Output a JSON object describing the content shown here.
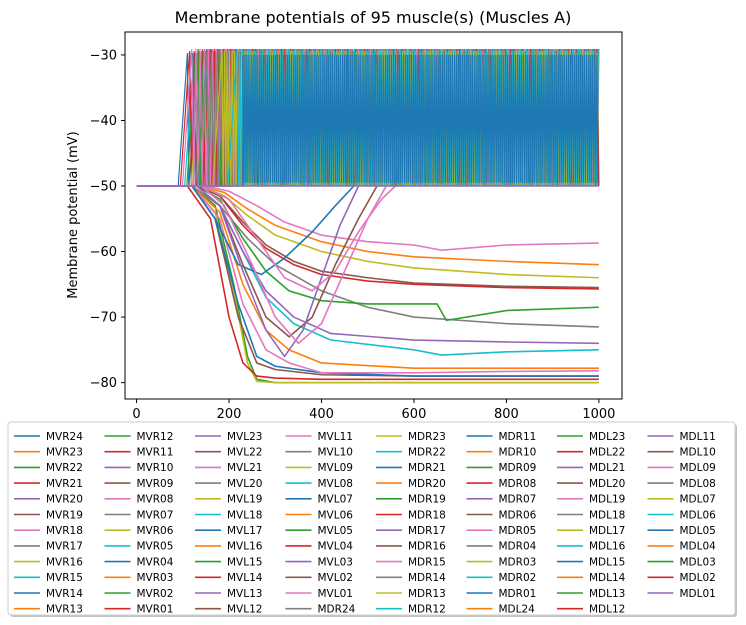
{
  "chart_data": {
    "type": "line",
    "title": "Membrane potentials of 95 muscle(s) (Muscles A)",
    "xlabel": "",
    "ylabel": "Membrane potential (mV)",
    "xlim": [
      -25,
      1050
    ],
    "ylim": [
      -82.5,
      -26.5
    ],
    "xticks": [
      0,
      200,
      400,
      600,
      800,
      1000
    ],
    "yticks": [
      -30,
      -40,
      -50,
      -60,
      -70,
      -80
    ],
    "xtick_labels": [
      "0",
      "200",
      "400",
      "600",
      "800",
      "1000"
    ],
    "ytick_labels": [
      "−30",
      "−40",
      "−50",
      "−60",
      "−70",
      "−80"
    ],
    "legend": {
      "placement": "bottom",
      "columns": 8
    },
    "palette": [
      "#1f77b4",
      "#ff7f0e",
      "#2ca02c",
      "#d62728",
      "#9467bd",
      "#8c564b",
      "#e377c2",
      "#7f7f7f",
      "#bcbd22",
      "#17becf"
    ],
    "series_names": [
      "MVR24",
      "MVR23",
      "MVR22",
      "MVR21",
      "MVR20",
      "MVR19",
      "MVR18",
      "MVR17",
      "MVR16",
      "MVR15",
      "MVR14",
      "MVR13",
      "MVR12",
      "MVR11",
      "MVR10",
      "MVR09",
      "MVR08",
      "MVR07",
      "MVR06",
      "MVR05",
      "MVR04",
      "MVR03",
      "MVR02",
      "MVR01",
      "MVL23",
      "MVL22",
      "MVL21",
      "MVL20",
      "MVL19",
      "MVL18",
      "MVL17",
      "MVL16",
      "MVL15",
      "MVL14",
      "MVL13",
      "MVL12",
      "MVL11",
      "MVL10",
      "MVL09",
      "MVL08",
      "MVL07",
      "MVL06",
      "MVL05",
      "MVL04",
      "MVL03",
      "MVL02",
      "MVL01",
      "MDR24",
      "MDR23",
      "MDR22",
      "MDR21",
      "MDR20",
      "MDR19",
      "MDR18",
      "MDR17",
      "MDR16",
      "MDR15",
      "MDR14",
      "MDR13",
      "MDR12",
      "MDR11",
      "MDR10",
      "MDR09",
      "MDR08",
      "MDR07",
      "MDR06",
      "MDR05",
      "MDR04",
      "MDR03",
      "MDR02",
      "MDR01",
      "MDL24",
      "MDL23",
      "MDL22",
      "MDL21",
      "MDL20",
      "MDL19",
      "MDL18",
      "MDL17",
      "MDL16",
      "MDL15",
      "MDL14",
      "MDL13",
      "MDL12",
      "MDL11",
      "MDL10",
      "MDL09",
      "MDL08",
      "MDL07",
      "MDL06",
      "MDL05",
      "MDL04",
      "MDL03",
      "MDL02",
      "MDL01"
    ],
    "representative_series": [
      {
        "kind": "hyperpolarize",
        "color": "#2ca02c",
        "x": [
          0,
          120,
          170,
          210,
          240,
          260,
          300,
          400,
          600,
          800,
          1000
        ],
        "y": [
          -50,
          -50,
          -53,
          -65,
          -76,
          -79.5,
          -80,
          -80,
          -80,
          -80,
          -80
        ]
      },
      {
        "kind": "hyperpolarize",
        "color": "#bcbd22",
        "x": [
          0,
          120,
          170,
          210,
          240,
          260,
          300,
          400,
          600,
          800,
          1000
        ],
        "y": [
          -50,
          -50,
          -54,
          -66,
          -77,
          -79.8,
          -80,
          -80,
          -80,
          -80,
          -80
        ]
      },
      {
        "kind": "hyperpolarize",
        "color": "#d62728",
        "x": [
          0,
          110,
          160,
          200,
          230,
          260,
          300,
          400,
          600,
          800,
          1000
        ],
        "y": [
          -50,
          -50,
          -55,
          -70,
          -77,
          -79,
          -79.3,
          -79.5,
          -79.5,
          -79.5,
          -79.5
        ]
      },
      {
        "kind": "hyperpolarize",
        "color": "#8c564b",
        "x": [
          0,
          120,
          170,
          220,
          260,
          300,
          400,
          600,
          800,
          1000
        ],
        "y": [
          -50,
          -50,
          -55,
          -70,
          -77,
          -78,
          -78.8,
          -79,
          -79,
          -79
        ]
      },
      {
        "kind": "hyperpolarize",
        "color": "#1f77b4",
        "x": [
          0,
          120,
          170,
          220,
          260,
          300,
          400,
          600,
          800,
          1000
        ],
        "y": [
          -50,
          -50,
          -55,
          -68,
          -76,
          -77.5,
          -78.5,
          -79,
          -79,
          -79
        ]
      },
      {
        "kind": "hyperpolarize",
        "color": "#e377c2",
        "x": [
          0,
          120,
          180,
          230,
          280,
          330,
          400,
          600,
          800,
          1000
        ],
        "y": [
          -50,
          -50,
          -55,
          -68,
          -75,
          -77,
          -78.5,
          -78.5,
          -78.3,
          -78.2
        ]
      },
      {
        "kind": "hyperpolarize",
        "color": "#ff7f0e",
        "x": [
          0,
          120,
          180,
          230,
          280,
          330,
          400,
          600,
          800,
          1000
        ],
        "y": [
          -50,
          -50,
          -54,
          -65,
          -72,
          -75,
          -77,
          -77.8,
          -77.8,
          -77.8
        ]
      },
      {
        "kind": "hyperpolarize",
        "color": "#17becf",
        "x": [
          0,
          120,
          180,
          230,
          280,
          340,
          420,
          600,
          660,
          800,
          1000
        ],
        "y": [
          -50,
          -50,
          -53,
          -60,
          -67,
          -71,
          -73.5,
          -75,
          -75.8,
          -75.3,
          -75
        ]
      },
      {
        "kind": "hyperpolarize",
        "color": "#9467bd",
        "x": [
          0,
          120,
          180,
          230,
          280,
          340,
          420,
          600,
          800,
          1000
        ],
        "y": [
          -50,
          -50,
          -53,
          -60,
          -66,
          -70,
          -72.5,
          -73.5,
          -73.8,
          -74
        ]
      },
      {
        "kind": "hyperpolarize",
        "color": "#7f7f7f",
        "x": [
          0,
          120,
          180,
          240,
          300,
          400,
          500,
          600,
          800,
          1000
        ],
        "y": [
          -50,
          -50,
          -53,
          -58,
          -62,
          -66,
          -68.5,
          -70,
          -71,
          -71.5
        ]
      },
      {
        "kind": "hyperpolarize",
        "color": "#2ca02c",
        "x": [
          0,
          130,
          180,
          230,
          280,
          330,
          400,
          500,
          650,
          670,
          800,
          1000
        ],
        "y": [
          -50,
          -50,
          -52,
          -58,
          -63,
          -66,
          -67.5,
          -68,
          -68,
          -70.5,
          -69,
          -68.5
        ]
      },
      {
        "kind": "hyperpolarize",
        "color": "#d62728",
        "x": [
          0,
          130,
          180,
          230,
          280,
          340,
          400,
          500,
          600,
          800,
          1000
        ],
        "y": [
          -50,
          -50,
          -51.5,
          -56,
          -59.5,
          -62,
          -63.5,
          -64.5,
          -65,
          -65.5,
          -65.7
        ]
      },
      {
        "kind": "hyperpolarize",
        "color": "#8c564b",
        "x": [
          0,
          130,
          180,
          230,
          280,
          340,
          400,
          500,
          600,
          800,
          1000
        ],
        "y": [
          -50,
          -50,
          -51.5,
          -55.5,
          -59,
          -61.5,
          -63,
          -64,
          -64.8,
          -65.3,
          -65.5
        ]
      },
      {
        "kind": "hyperpolarize",
        "color": "#bcbd22",
        "x": [
          0,
          140,
          190,
          240,
          300,
          400,
          500,
          600,
          800,
          1000
        ],
        "y": [
          -50,
          -50,
          -51.5,
          -54.5,
          -57.5,
          -60,
          -61.5,
          -62.5,
          -63.5,
          -64
        ]
      },
      {
        "kind": "hyperpolarize",
        "color": "#ff7f0e",
        "x": [
          0,
          140,
          190,
          240,
          300,
          400,
          500,
          600,
          800,
          1000
        ],
        "y": [
          -50,
          -50,
          -51,
          -53.5,
          -56,
          -58.5,
          -60,
          -60.8,
          -61.5,
          -62
        ]
      },
      {
        "kind": "hyperpolarize",
        "color": "#e377c2",
        "x": [
          0,
          150,
          200,
          260,
          320,
          400,
          500,
          600,
          660,
          800,
          1000
        ],
        "y": [
          -50,
          -50,
          -50.8,
          -53,
          -55.5,
          -57.5,
          -58.5,
          -59,
          -59.8,
          -59,
          -58.7
        ]
      },
      {
        "kind": "recover",
        "color": "#1f77b4",
        "x": [
          0,
          120,
          170,
          220,
          270,
          320,
          380,
          430,
          470
        ],
        "y": [
          -50,
          -50,
          -55,
          -62,
          -63.5,
          -61,
          -57,
          -53,
          -50
        ]
      },
      {
        "kind": "recover",
        "color": "#8c564b",
        "x": [
          0,
          130,
          180,
          230,
          280,
          330,
          380,
          430,
          480,
          520
        ],
        "y": [
          -50,
          -50,
          -53,
          -62,
          -70,
          -73,
          -70,
          -62,
          -55,
          -50
        ]
      },
      {
        "kind": "recover",
        "color": "#9467bd",
        "x": [
          0,
          130,
          180,
          230,
          280,
          320,
          360,
          400,
          440,
          480
        ],
        "y": [
          -50,
          -50,
          -53,
          -63,
          -72,
          -76,
          -72,
          -64,
          -56,
          -50
        ]
      },
      {
        "kind": "recover",
        "color": "#e377c2",
        "x": [
          0,
          140,
          190,
          250,
          300,
          350,
          400,
          450,
          500,
          540
        ],
        "y": [
          -50,
          -50,
          -53,
          -62,
          -70,
          -74,
          -71,
          -63,
          -55,
          -50
        ]
      },
      {
        "kind": "recover",
        "color": "#e377c2",
        "x": [
          0,
          140,
          200,
          260,
          320,
          380,
          430,
          480,
          530,
          560
        ],
        "y": [
          -50,
          -50,
          -52,
          -58,
          -64,
          -66,
          -63,
          -57,
          -52,
          -50
        ]
      }
    ],
    "spiking_band": {
      "x_start_range": [
        110,
        250
      ],
      "x_end": 1000,
      "y_low": -50,
      "y_high": -29.7,
      "description": "rapidly oscillating series between -50 and about -30 mV"
    }
  }
}
